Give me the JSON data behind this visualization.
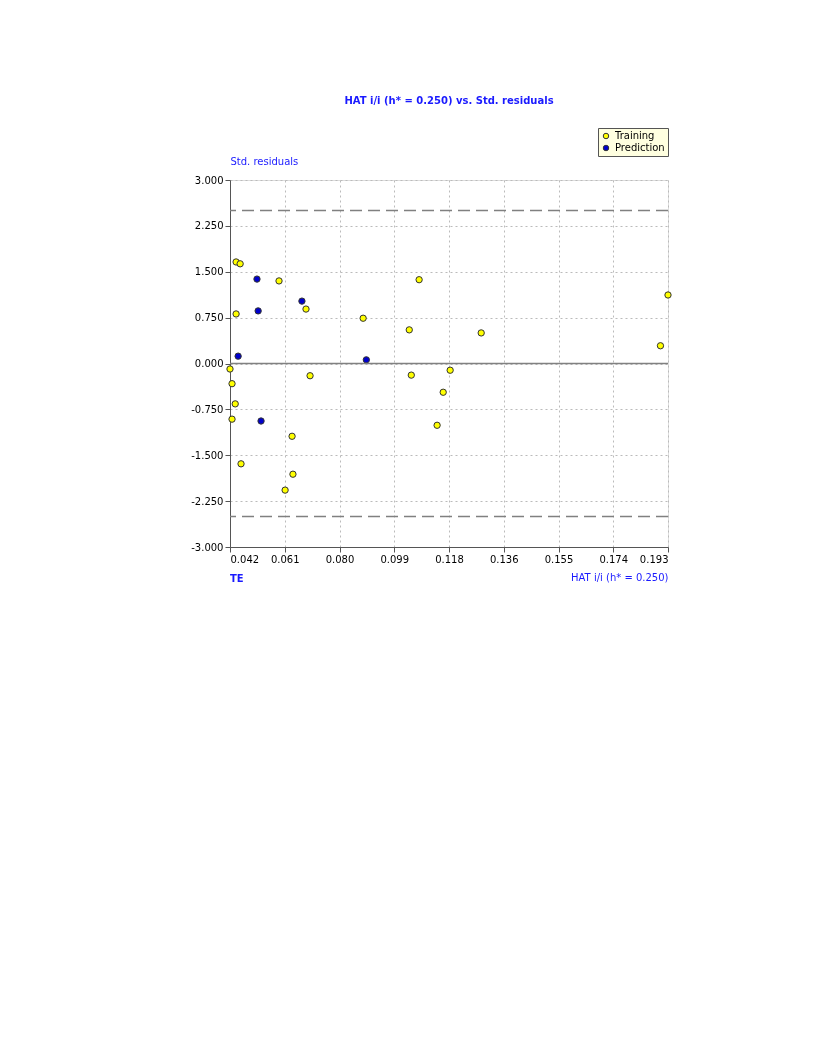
{
  "chart_data": {
    "type": "scatter",
    "title": "HAT i/i (h* = 0.250) vs. Std. residuals",
    "xlabel": "HAT i/i (h* = 0.250)",
    "ylabel": "Std. residuals",
    "annotations": [
      "TE"
    ],
    "xlim": [
      0.042,
      0.193
    ],
    "ylim": [
      -3.0,
      3.0
    ],
    "xticks": [
      {
        "value": 0.042,
        "label": "0.042"
      },
      {
        "value": 0.060875,
        "label": "0.061"
      },
      {
        "value": 0.07975,
        "label": "0.080"
      },
      {
        "value": 0.098625,
        "label": "0.099"
      },
      {
        "value": 0.1175,
        "label": "0.118"
      },
      {
        "value": 0.136375,
        "label": "0.136"
      },
      {
        "value": 0.15525,
        "label": "0.155"
      },
      {
        "value": 0.174125,
        "label": "0.174"
      },
      {
        "value": 0.193,
        "label": "0.193"
      }
    ],
    "yticks": [
      {
        "value": 3,
        "label": "3.000"
      },
      {
        "value": 2.25,
        "label": "2.250"
      },
      {
        "value": 1.5,
        "label": "1.500"
      },
      {
        "value": 0.75,
        "label": "0.750"
      },
      {
        "value": 0,
        "label": "0.000"
      },
      {
        "value": -0.75,
        "label": "-0.750"
      },
      {
        "value": -1.5,
        "label": "-1.500"
      },
      {
        "value": -2.25,
        "label": "-2.250"
      },
      {
        "value": -3,
        "label": "-3.000"
      }
    ],
    "series": [
      {
        "name": "Training",
        "color": "#ffff00",
        "x": [
          0.0441,
          0.0455,
          0.0441,
          0.0589,
          0.0682,
          0.0696,
          0.042,
          0.0427,
          0.0438,
          0.0427,
          0.0458,
          0.0634,
          0.0637,
          0.061,
          0.0879,
          0.1038,
          0.1045,
          0.1072,
          0.1134,
          0.1155,
          0.1179,
          0.1286,
          0.1904,
          0.193
        ],
        "values": [
          1.66,
          1.63,
          0.81,
          1.35,
          0.89,
          -0.2,
          -0.09,
          -0.33,
          -0.66,
          -0.91,
          -1.64,
          -1.19,
          -1.81,
          -2.07,
          0.74,
          0.55,
          -0.19,
          1.37,
          -1.01,
          -0.47,
          -0.11,
          0.5,
          0.29,
          1.12
        ]
      },
      {
        "name": "Prediction",
        "color": "#0000cc",
        "x": [
          0.0513,
          0.0517,
          0.0448,
          0.0527,
          0.0668,
          0.089
        ],
        "values": [
          1.38,
          0.86,
          0.12,
          -0.94,
          1.02,
          0.06
        ]
      }
    ],
    "ref_lines": [
      {
        "axis": "y",
        "value": 2.5,
        "label": null,
        "color": "#808080",
        "line_style": "dashed"
      },
      {
        "axis": "y",
        "value": -2.5,
        "label": null,
        "color": "#808080",
        "line_style": "dashed"
      },
      {
        "axis": "y",
        "value": 0,
        "label": null,
        "color": "#808080",
        "line_style": "solid"
      }
    ],
    "grid": true,
    "legend": "top right",
    "marker": "circle"
  }
}
